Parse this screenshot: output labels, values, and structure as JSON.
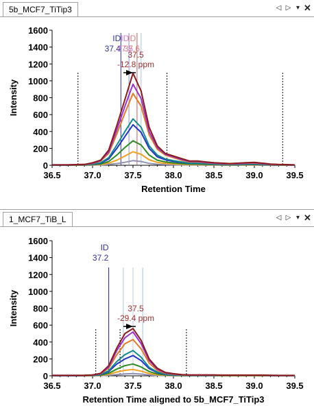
{
  "panes": [
    {
      "tab_label": "5b_MCF7_TiTip3",
      "chart_data": {
        "type": "line",
        "xlabel": "Retention Time",
        "ylabel": "Intensity",
        "xlim": [
          36.5,
          39.5
        ],
        "ylim": [
          0,
          1600
        ],
        "x_ticks": [
          "36.5",
          "37.0",
          "37.5",
          "38.0",
          "38.5",
          "39.0",
          "39.5"
        ],
        "y_ticks": [
          "0",
          "200",
          "400",
          "600",
          "800",
          "1000",
          "1200",
          "1400",
          "1600"
        ],
        "x": [
          36.5,
          36.6,
          36.7,
          36.8,
          36.9,
          37.0,
          37.1,
          37.2,
          37.3,
          37.4,
          37.5,
          37.6,
          37.7,
          37.8,
          37.9,
          38.0,
          38.1,
          38.2,
          38.3,
          38.4,
          38.5,
          38.6,
          38.7,
          38.8,
          38.9,
          39.0,
          39.1,
          39.2,
          39.3,
          39.4,
          39.5
        ],
        "series": [
          {
            "color": "#8b1a1a",
            "values": [
              5,
              5,
              5,
              8,
              10,
              30,
              60,
              180,
              470,
              780,
              1090,
              880,
              450,
              230,
              140,
              110,
              80,
              50,
              50,
              40,
              30,
              25,
              20,
              25,
              30,
              35,
              25,
              15,
              10,
              8,
              5
            ]
          },
          {
            "color": "#9b30d0",
            "values": [
              5,
              5,
              5,
              8,
              10,
              25,
              55,
              160,
              420,
              700,
              960,
              790,
              400,
              210,
              130,
              100,
              70,
              45,
              45,
              35,
              25,
              20,
              18,
              20,
              25,
              30,
              20,
              12,
              8,
              6,
              4
            ]
          },
          {
            "color": "#e07b20",
            "values": [
              4,
              4,
              4,
              6,
              8,
              22,
              50,
              140,
              370,
              620,
              850,
              700,
              360,
              190,
              120,
              90,
              60,
              40,
              40,
              30,
              22,
              18,
              15,
              18,
              22,
              25,
              18,
              10,
              7,
              5,
              3
            ]
          },
          {
            "color": "#138a8a",
            "values": [
              3,
              3,
              3,
              5,
              6,
              15,
              30,
              90,
              240,
              400,
              550,
              450,
              230,
              120,
              75,
              55,
              40,
              25,
              25,
              20,
              15,
              12,
              10,
              12,
              15,
              18,
              12,
              8,
              5,
              4,
              2
            ]
          },
          {
            "color": "#2233cc",
            "values": [
              2,
              2,
              2,
              4,
              5,
              12,
              25,
              75,
              200,
              340,
              480,
              390,
              200,
              100,
              65,
              45,
              35,
              22,
              22,
              18,
              12,
              10,
              8,
              10,
              12,
              15,
              10,
              6,
              4,
              3,
              2
            ]
          },
          {
            "color": "#2e8b22",
            "values": [
              1,
              1,
              1,
              2,
              3,
              8,
              15,
              45,
              120,
              210,
              290,
              240,
              120,
              60,
              40,
              28,
              20,
              14,
              14,
              10,
              8,
              6,
              5,
              6,
              8,
              9,
              6,
              4,
              2,
              2,
              1
            ]
          },
          {
            "color": "#f0a020",
            "values": [
              1,
              1,
              1,
              2,
              2,
              5,
              8,
              25,
              60,
              110,
              160,
              130,
              65,
              35,
              22,
              16,
              12,
              8,
              8,
              6,
              5,
              4,
              3,
              4,
              5,
              5,
              4,
              2,
              1,
              1,
              1
            ]
          },
          {
            "color": "#9090b0",
            "values": [
              0,
              0,
              0,
              1,
              1,
              2,
              4,
              10,
              20,
              35,
              55,
              45,
              22,
              12,
              8,
              6,
              4,
              3,
              3,
              2,
              2,
              1,
              1,
              1,
              2,
              2,
              1,
              1,
              0,
              0,
              0
            ]
          }
        ],
        "dashed_lines_x": [
          36.82,
          37.92,
          39.35
        ],
        "id_lines": [
          {
            "x": 37.35,
            "color": "#3030a0"
          },
          {
            "x": 37.45,
            "color": "#9090d0"
          },
          {
            "x": 37.55,
            "color": "#c06060"
          },
          {
            "x": 37.6,
            "color": "#a0c8e0"
          }
        ],
        "id_label_lines": [
          {
            "text": "ID",
            "color": "#3030a0"
          },
          {
            "text": "37.4",
            "color": "#3030a0"
          }
        ],
        "id_label_lines_overlap": [
          {
            "text": "ID",
            "color": "#c060c0"
          },
          {
            "text": "37.5",
            "color": "#c060c0"
          },
          {
            "text": "ID",
            "color": "#d06060"
          },
          {
            "text": "37.6",
            "color": "#d06060"
          }
        ],
        "peak_rt": "37.5",
        "peak_ppm": "-12.8 ppm",
        "peak_x": 37.5
      }
    },
    {
      "tab_label": "1_MCF7_TiB_L",
      "chart_data": {
        "type": "line",
        "xlabel": "Retention Time aligned to 5b_MCF7_TiTip3",
        "ylabel": "Intensity",
        "xlim": [
          36.5,
          39.5
        ],
        "ylim": [
          0,
          1600
        ],
        "x_ticks": [
          "36.5",
          "37.0",
          "37.5",
          "38.0",
          "38.5",
          "39.0",
          "39.5"
        ],
        "y_ticks": [
          "0",
          "200",
          "400",
          "600",
          "800",
          "1000",
          "1200",
          "1400",
          "1600"
        ],
        "x": [
          36.5,
          36.6,
          36.7,
          36.8,
          36.9,
          37.0,
          37.1,
          37.2,
          37.3,
          37.4,
          37.5,
          37.6,
          37.7,
          37.8,
          37.9,
          38.0,
          38.1,
          38.2,
          38.3,
          38.4,
          38.5,
          38.6,
          38.7,
          38.8,
          38.9,
          39.0,
          39.1,
          39.2,
          39.3,
          39.4,
          39.5
        ],
        "series": [
          {
            "color": "#8b1a1a",
            "values": [
              5,
              5,
              5,
              5,
              6,
              10,
              30,
              120,
              330,
              500,
              560,
              420,
              200,
              90,
              40,
              25,
              15,
              10,
              10,
              10,
              10,
              8,
              8,
              8,
              8,
              8,
              8,
              6,
              5,
              5,
              5
            ]
          },
          {
            "color": "#9b30d0",
            "values": [
              5,
              5,
              5,
              5,
              6,
              9,
              28,
              105,
              300,
              450,
              520,
              380,
              180,
              80,
              35,
              22,
              13,
              9,
              9,
              9,
              9,
              7,
              7,
              7,
              7,
              7,
              7,
              5,
              4,
              4,
              4
            ]
          },
          {
            "color": "#e07b20",
            "values": [
              4,
              4,
              4,
              4,
              5,
              8,
              24,
              90,
              250,
              380,
              430,
              320,
              150,
              65,
              30,
              18,
              11,
              8,
              8,
              8,
              8,
              6,
              6,
              6,
              6,
              6,
              6,
              4,
              3,
              3,
              3
            ]
          },
          {
            "color": "#138a8a",
            "values": [
              3,
              3,
              3,
              3,
              4,
              6,
              16,
              60,
              170,
              250,
              300,
              220,
              100,
              45,
              20,
              12,
              8,
              6,
              6,
              6,
              6,
              4,
              4,
              4,
              4,
              4,
              4,
              3,
              2,
              2,
              2
            ]
          },
          {
            "color": "#2233cc",
            "values": [
              2,
              2,
              2,
              2,
              3,
              5,
              13,
              50,
              140,
              200,
              240,
              180,
              85,
              38,
              16,
              10,
              7,
              5,
              5,
              5,
              5,
              4,
              4,
              4,
              4,
              4,
              4,
              3,
              2,
              2,
              2
            ]
          },
          {
            "color": "#2e8b22",
            "values": [
              1,
              1,
              1,
              1,
              2,
              3,
              8,
              30,
              80,
              120,
              140,
              105,
              50,
              22,
              10,
              6,
              4,
              3,
              3,
              3,
              3,
              2,
              2,
              2,
              2,
              2,
              2,
              2,
              1,
              1,
              1
            ]
          },
          {
            "color": "#f0a020",
            "values": [
              1,
              1,
              1,
              1,
              1,
              2,
              5,
              18,
              45,
              65,
              75,
              55,
              28,
              12,
              6,
              4,
              3,
              2,
              2,
              2,
              2,
              1,
              1,
              1,
              1,
              1,
              1,
              1,
              1,
              1,
              1
            ]
          },
          {
            "color": "#9090b0",
            "values": [
              0,
              0,
              0,
              0,
              0,
              1,
              2,
              6,
              15,
              22,
              26,
              20,
              10,
              4,
              2,
              1,
              1,
              1,
              1,
              1,
              1,
              0,
              0,
              0,
              0,
              0,
              0,
              0,
              0,
              0,
              0
            ]
          }
        ],
        "dashed_lines_x": [
          37.04,
          37.34,
          38.16
        ],
        "id_lines": [
          {
            "x": 37.2,
            "color": "#202060"
          },
          {
            "x": 37.38,
            "color": "#a0c8e0"
          },
          {
            "x": 37.5,
            "color": "#c8c8e0"
          },
          {
            "x": 37.62,
            "color": "#a0c8e0"
          }
        ],
        "id_label_lines": [
          {
            "text": "ID",
            "color": "#3030a0"
          },
          {
            "text": "37.2",
            "color": "#3030a0"
          }
        ],
        "id_label_lines_overlap": [],
        "peak_rt": "37.5",
        "peak_ppm": "-29.4 ppm",
        "peak_x": 37.5
      }
    }
  ]
}
